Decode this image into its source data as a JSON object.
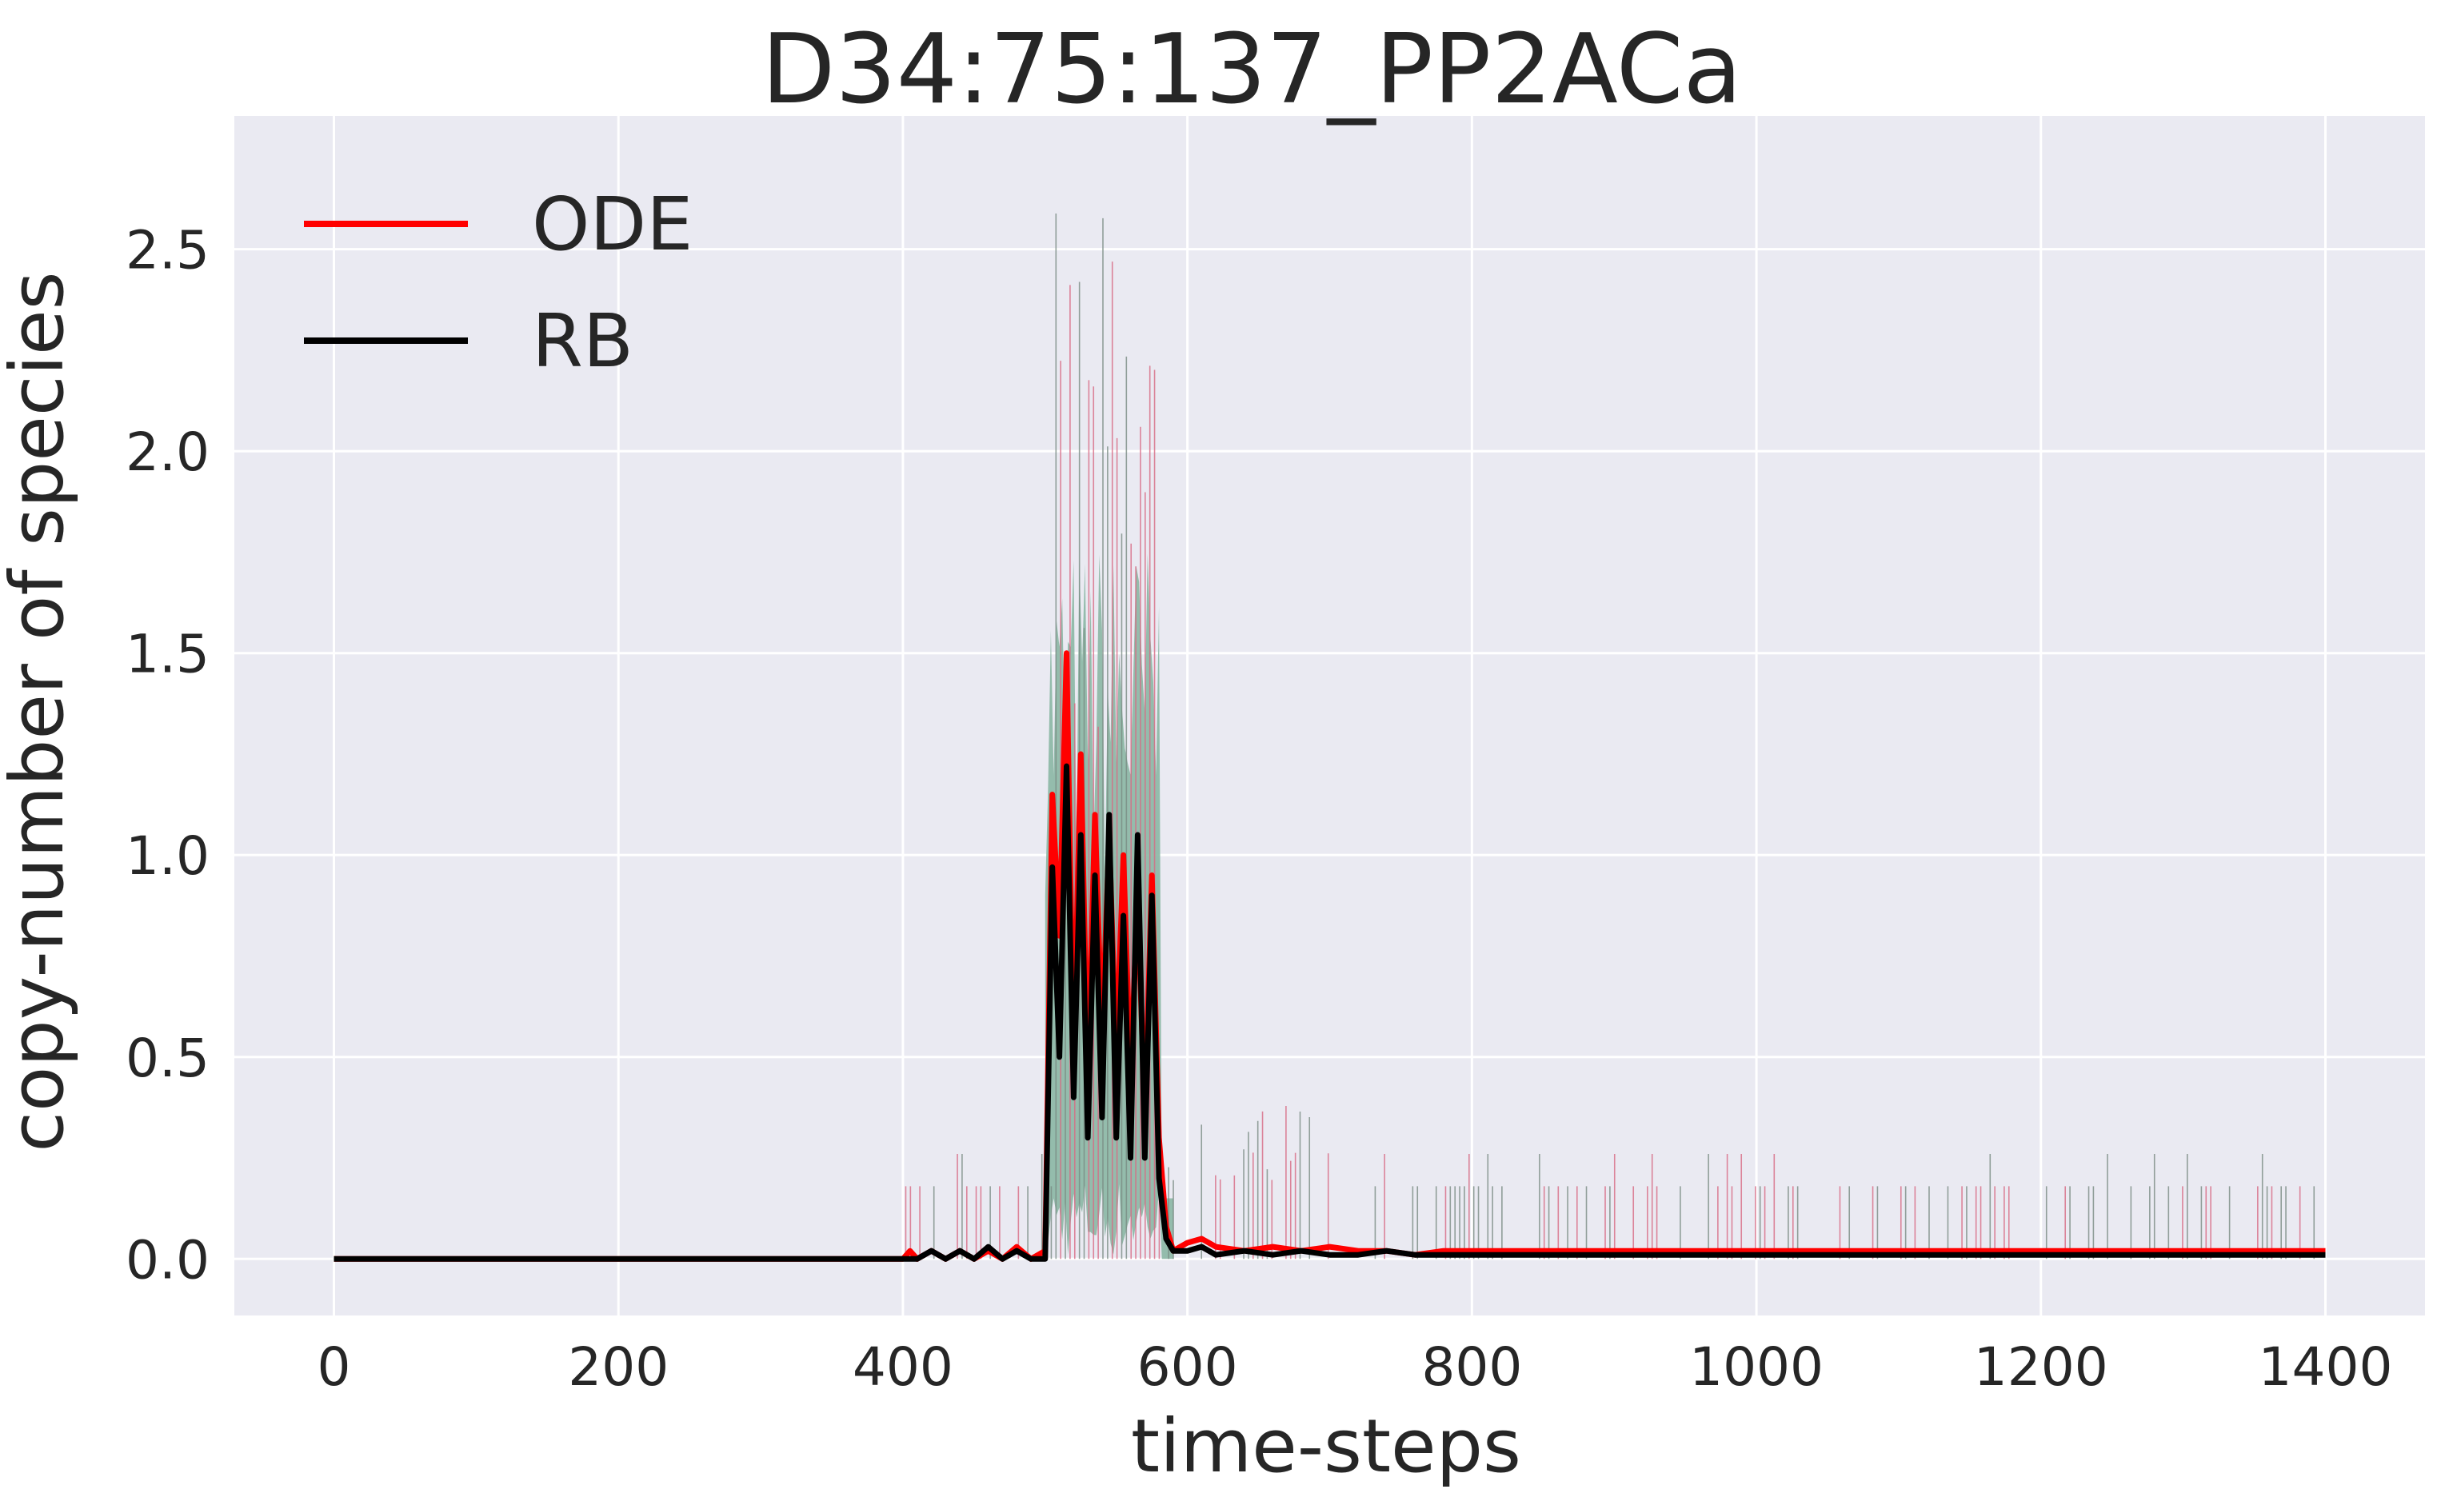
{
  "chart_data": {
    "type": "line",
    "title": "D34:75:137_PP2ACa",
    "xlabel": "time-steps",
    "ylabel": "copy-number of species",
    "xlim": [
      -70,
      1470
    ],
    "ylim": [
      -0.14,
      2.83
    ],
    "xticks": [
      0,
      200,
      400,
      600,
      800,
      1000,
      1200,
      1400
    ],
    "xtick_labels": [
      "0",
      "200",
      "400",
      "600",
      "800",
      "1000",
      "1200",
      "1400"
    ],
    "yticks": [
      0.0,
      0.5,
      1.0,
      1.5,
      2.0,
      2.5
    ],
    "ytick_labels": [
      "0.0",
      "0.5",
      "1.0",
      "1.5",
      "2.0",
      "2.5"
    ],
    "grid": true,
    "legend_position": "upper-left",
    "background_color": "#eaeaf2",
    "grid_color": "#ffffff",
    "band_color": "#8fb9a8",
    "series": [
      {
        "name": "ODE",
        "color": "#ff0000",
        "x": [
          0,
          100,
          200,
          300,
          400,
          405,
          410,
          420,
          430,
          440,
          450,
          460,
          470,
          480,
          490,
          500,
          505,
          510,
          515,
          520,
          525,
          530,
          535,
          540,
          545,
          550,
          555,
          560,
          565,
          570,
          575,
          580,
          585,
          590,
          600,
          610,
          620,
          640,
          660,
          680,
          700,
          720,
          740,
          760,
          780,
          800,
          850,
          900,
          950,
          1000,
          1050,
          1100,
          1150,
          1200,
          1250,
          1300,
          1350,
          1400
        ],
        "y": [
          0,
          0,
          0,
          0,
          0,
          0.02,
          0.0,
          0.02,
          0.0,
          0.02,
          0.0,
          0.02,
          0.0,
          0.03,
          0.0,
          0.02,
          1.15,
          0.8,
          1.5,
          0.5,
          1.25,
          0.45,
          1.1,
          0.55,
          1.05,
          0.5,
          1.0,
          0.45,
          0.9,
          0.35,
          0.95,
          0.3,
          0.08,
          0.02,
          0.04,
          0.05,
          0.03,
          0.02,
          0.03,
          0.02,
          0.03,
          0.02,
          0.02,
          0.01,
          0.02,
          0.02,
          0.02,
          0.02,
          0.02,
          0.02,
          0.02,
          0.02,
          0.02,
          0.02,
          0.02,
          0.02,
          0.02,
          0.02
        ]
      },
      {
        "name": "RB",
        "color": "#000000",
        "x": [
          0,
          100,
          200,
          300,
          400,
          410,
          420,
          430,
          440,
          450,
          460,
          470,
          480,
          490,
          500,
          505,
          510,
          515,
          520,
          525,
          530,
          535,
          540,
          545,
          550,
          555,
          560,
          565,
          570,
          575,
          580,
          585,
          590,
          600,
          610,
          620,
          640,
          660,
          680,
          700,
          720,
          740,
          760,
          780,
          800,
          850,
          900,
          950,
          1000,
          1050,
          1100,
          1150,
          1200,
          1250,
          1300,
          1350,
          1400
        ],
        "y": [
          0,
          0,
          0,
          0,
          0,
          0.0,
          0.02,
          0.0,
          0.02,
          0.0,
          0.03,
          0.0,
          0.02,
          0.0,
          0.0,
          0.97,
          0.5,
          1.22,
          0.4,
          1.05,
          0.3,
          0.95,
          0.35,
          1.1,
          0.3,
          0.85,
          0.25,
          1.05,
          0.25,
          0.9,
          0.2,
          0.05,
          0.02,
          0.02,
          0.03,
          0.01,
          0.02,
          0.01,
          0.02,
          0.01,
          0.01,
          0.02,
          0.01,
          0.01,
          0.01,
          0.01,
          0.01,
          0.01,
          0.01,
          0.01,
          0.01,
          0.01,
          0.01,
          0.01,
          0.01,
          0.01,
          0.01
        ]
      }
    ]
  }
}
